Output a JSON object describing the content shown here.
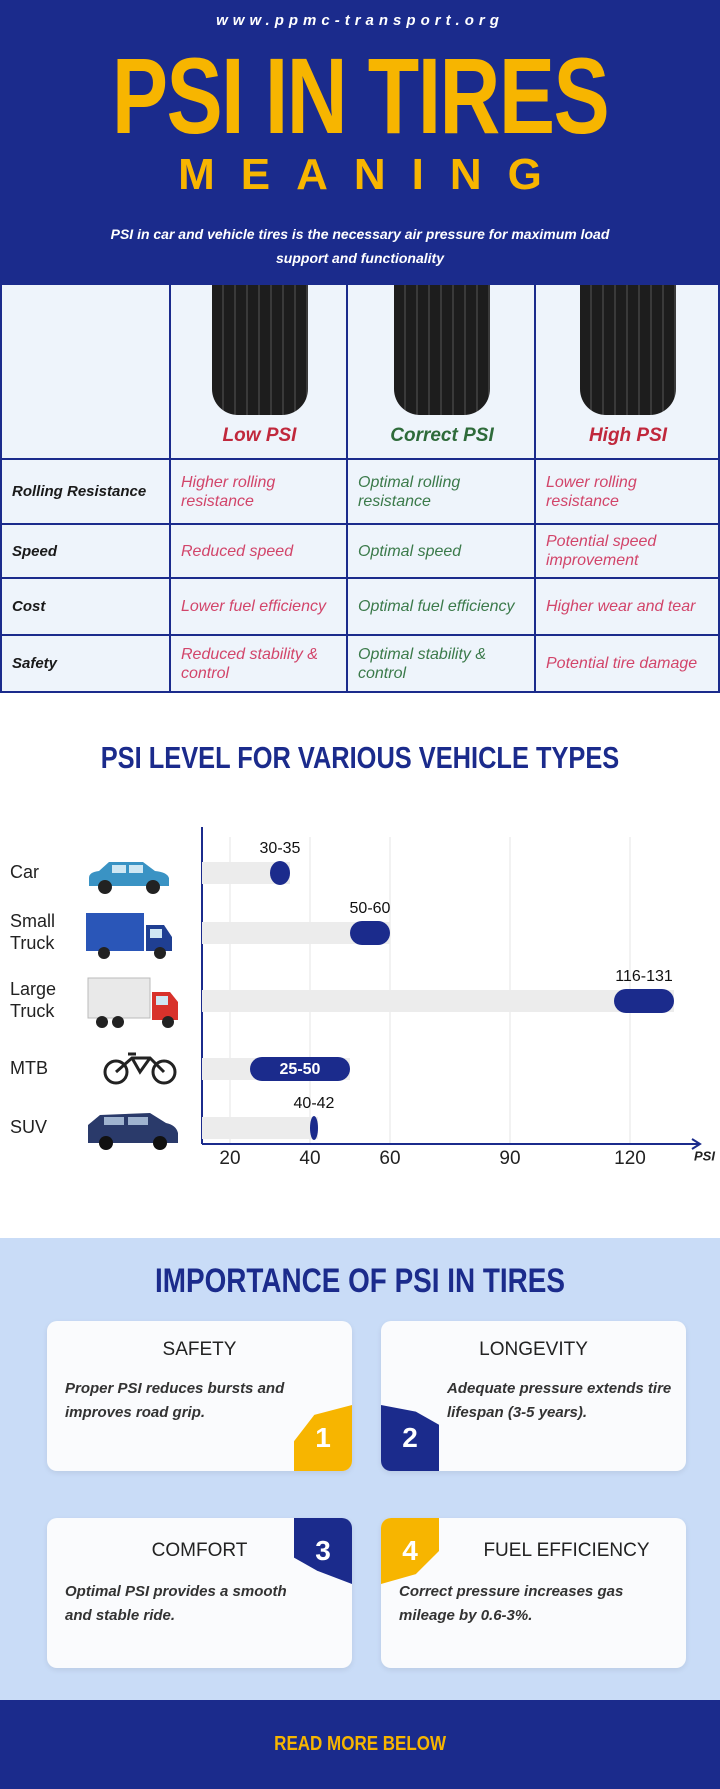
{
  "header": {
    "url": "www.ppmc-transport.org",
    "title": "PSI IN TIRES",
    "subtitle": "MEANING",
    "description": "PSI in car and vehicle tires is the necessary air pressure for maximum load support and functionality"
  },
  "table": {
    "columns": [
      "Low PSI",
      "Correct PSI",
      "High PSI"
    ],
    "rows": [
      [
        "Rolling Resistance",
        "Higher rolling resistance",
        "Optimal rolling resistance",
        "Lower rolling resistance"
      ],
      [
        "Speed",
        "Reduced speed",
        "Optimal speed",
        "Potential speed improvement"
      ],
      [
        "Cost",
        "Lower fuel efficiency",
        "Optimal fuel efficiency",
        "Higher wear and tear"
      ],
      [
        "Safety",
        "Reduced stability & control",
        "Optimal stability & control",
        "Potential tire damage"
      ]
    ]
  },
  "chart_data": {
    "type": "range-bar",
    "title": "PSI LEVEL FOR VARIOUS VEHICLE TYPES",
    "categories": [
      "Car",
      "Small Truck",
      "Large Truck",
      "MTB",
      "SUV"
    ],
    "low": [
      30,
      50,
      116,
      25,
      40
    ],
    "high": [
      35,
      60,
      131,
      50,
      42
    ],
    "value_labels": [
      "30-35",
      "50-60",
      "116-131",
      "25-50",
      "40-42"
    ],
    "color": "#1b2b8c",
    "track_color": "#ececec",
    "xlabel": "PSI",
    "xlim": [
      13,
      135
    ],
    "xticks": [
      20,
      40,
      60,
      90,
      120
    ],
    "grid": true
  },
  "importance": {
    "title": "IMPORTANCE OF PSI IN TIRES",
    "cards": [
      {
        "number": 1,
        "title": "SAFETY",
        "text": "Proper PSI reduces bursts and improves road grip."
      },
      {
        "number": 2,
        "title": "LONGEVITY",
        "text": "Adequate pressure extends tire lifespan (3-5 years)."
      },
      {
        "number": 3,
        "title": "COMFORT",
        "text": "Optimal PSI provides a smooth and stable ride."
      },
      {
        "number": 4,
        "title": "FUEL EFFICIENCY",
        "text": "Correct pressure increases gas mileage by 0.6-3%."
      }
    ]
  },
  "footer": {
    "cta": "READ MORE BELOW"
  }
}
